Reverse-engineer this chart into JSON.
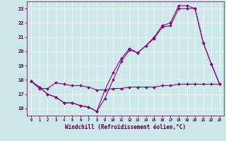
{
  "xlabel": "Windchill (Refroidissement éolien,°C)",
  "background_color": "#cce8e8",
  "line_color": "#880088",
  "xlim": [
    -0.5,
    23.5
  ],
  "ylim": [
    15.5,
    23.5
  ],
  "xticks": [
    0,
    1,
    2,
    3,
    4,
    5,
    6,
    7,
    8,
    9,
    10,
    11,
    12,
    13,
    14,
    15,
    16,
    17,
    18,
    19,
    20,
    21,
    22,
    23
  ],
  "yticks": [
    16,
    17,
    18,
    19,
    20,
    21,
    22,
    23
  ],
  "line1_x": [
    0,
    1,
    2,
    3,
    4,
    5,
    6,
    7,
    8,
    9,
    10,
    11,
    12,
    13,
    14,
    15,
    16,
    17,
    18,
    19,
    20,
    21,
    22,
    23
  ],
  "line1_y": [
    17.9,
    17.5,
    17.0,
    16.8,
    16.4,
    16.4,
    16.2,
    16.1,
    15.8,
    16.7,
    18.0,
    19.3,
    20.1,
    19.9,
    20.4,
    20.9,
    21.7,
    21.8,
    23.0,
    23.0,
    23.0,
    20.6,
    19.1,
    17.7
  ],
  "line2_x": [
    0,
    1,
    2,
    3,
    4,
    5,
    6,
    7,
    8,
    9,
    10,
    11,
    12,
    13,
    14,
    15,
    16,
    17,
    18,
    19,
    20,
    21,
    22,
    23
  ],
  "line2_y": [
    17.9,
    17.4,
    17.4,
    17.8,
    17.7,
    17.6,
    17.6,
    17.5,
    17.3,
    17.3,
    17.4,
    17.4,
    17.5,
    17.5,
    17.5,
    17.5,
    17.6,
    17.6,
    17.7,
    17.7,
    17.7,
    17.7,
    17.7,
    17.7
  ],
  "line3_x": [
    0,
    1,
    2,
    3,
    4,
    5,
    6,
    7,
    8,
    9,
    10,
    11,
    12,
    13,
    14,
    15,
    16,
    17,
    18,
    19,
    20,
    21,
    22,
    23
  ],
  "line3_y": [
    17.9,
    17.5,
    17.0,
    16.8,
    16.4,
    16.4,
    16.2,
    16.1,
    15.8,
    17.3,
    18.5,
    19.5,
    20.2,
    19.9,
    20.4,
    21.0,
    21.8,
    22.0,
    23.2,
    23.2,
    23.0,
    20.6,
    19.1,
    17.7
  ]
}
